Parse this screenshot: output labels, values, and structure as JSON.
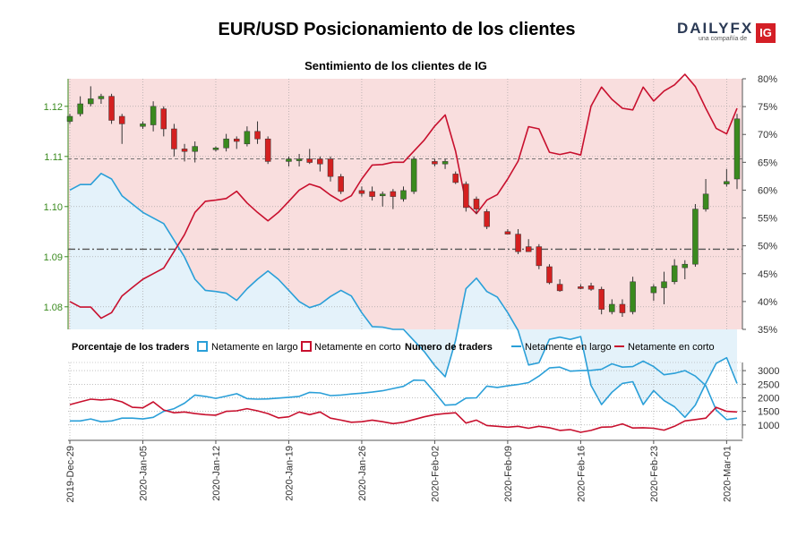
{
  "header": {
    "title": "EUR/USD Posicionamiento de los clientes",
    "logo_text": "DAILYFX",
    "logo_tagline": "una compañía de",
    "logo_ig": "IG"
  },
  "colors": {
    "long": "#2a9fd8",
    "short": "#c8102e",
    "candle_up": "#3a8a1e",
    "candle_down": "#d42020",
    "bg_short_zone": "#f9dede",
    "bg_long_zone": "#e4f2fa"
  },
  "legend": {
    "section_pct": "Porcentaje de los traders",
    "pct_long": "Netamente en largo",
    "pct_short": "Netamente en corto",
    "section_num": "Numero de traders",
    "num_long": "Netamente en largo",
    "num_short": "Netamente en corto"
  },
  "chart_data": [
    {
      "type": "candlestick",
      "title": "Sentimiento de los clientes de IG",
      "price_axis_ticks": [
        "1.08",
        "1.09",
        "1.10",
        "1.11",
        "1.12"
      ],
      "price_ylim": [
        1.0755,
        1.1255
      ],
      "pct_axis_ticks": [
        "35%",
        "40%",
        "45%",
        "50%",
        "55%",
        "60%",
        "65%",
        "70%",
        "75%",
        "80%"
      ],
      "pct_ylim": [
        35,
        80
      ],
      "reference_lines": [
        1.1095,
        1.0915
      ],
      "x_ticks": [
        "2019-Dec-29",
        "2020-Jan-05",
        "2020-Jan-12",
        "2020-Jan-19",
        "2020-Jan-26",
        "2020-Feb-02",
        "2020-Feb-09",
        "2020-Feb-16",
        "2020-Feb-23",
        "2020-Mar-01"
      ],
      "x_range": [
        0,
        64
      ],
      "candles": [
        {
          "x": 0,
          "o": 1.117,
          "h": 1.1185,
          "l": 1.1165,
          "c": 1.118
        },
        {
          "x": 1,
          "o": 1.1185,
          "h": 1.122,
          "l": 1.118,
          "c": 1.1205
        },
        {
          "x": 2,
          "o": 1.1205,
          "h": 1.124,
          "l": 1.12,
          "c": 1.1215
        },
        {
          "x": 3,
          "o": 1.1215,
          "h": 1.1225,
          "l": 1.1205,
          "c": 1.122
        },
        {
          "x": 4,
          "o": 1.122,
          "h": 1.1225,
          "l": 1.1165,
          "c": 1.1172
        },
        {
          "x": 5,
          "o": 1.118,
          "h": 1.1185,
          "l": 1.1125,
          "c": 1.1165
        },
        {
          "x": 7,
          "o": 1.116,
          "h": 1.117,
          "l": 1.1155,
          "c": 1.1165
        },
        {
          "x": 8,
          "o": 1.1163,
          "h": 1.121,
          "l": 1.115,
          "c": 1.12
        },
        {
          "x": 9,
          "o": 1.1195,
          "h": 1.12,
          "l": 1.114,
          "c": 1.1155
        },
        {
          "x": 10,
          "o": 1.1155,
          "h": 1.1165,
          "l": 1.11,
          "c": 1.1115
        },
        {
          "x": 11,
          "o": 1.1115,
          "h": 1.1125,
          "l": 1.109,
          "c": 1.111
        },
        {
          "x": 12,
          "o": 1.111,
          "h": 1.113,
          "l": 1.1088,
          "c": 1.112
        },
        {
          "x": 14,
          "o": 1.1115,
          "h": 1.112,
          "l": 1.111,
          "c": 1.1117
        },
        {
          "x": 15,
          "o": 1.1117,
          "h": 1.1145,
          "l": 1.111,
          "c": 1.1135
        },
        {
          "x": 16,
          "o": 1.1135,
          "h": 1.114,
          "l": 1.1115,
          "c": 1.113
        },
        {
          "x": 17,
          "o": 1.1125,
          "h": 1.116,
          "l": 1.112,
          "c": 1.115
        },
        {
          "x": 18,
          "o": 1.115,
          "h": 1.117,
          "l": 1.1125,
          "c": 1.1135
        },
        {
          "x": 19,
          "o": 1.1135,
          "h": 1.114,
          "l": 1.1085,
          "c": 1.109
        },
        {
          "x": 21,
          "o": 1.109,
          "h": 1.11,
          "l": 1.108,
          "c": 1.1095
        },
        {
          "x": 22,
          "o": 1.1095,
          "h": 1.1105,
          "l": 1.108,
          "c": 1.1095
        },
        {
          "x": 23,
          "o": 1.1095,
          "h": 1.1115,
          "l": 1.1085,
          "c": 1.1088
        },
        {
          "x": 24,
          "o": 1.1095,
          "h": 1.11,
          "l": 1.107,
          "c": 1.1085
        },
        {
          "x": 25,
          "o": 1.1095,
          "h": 1.11,
          "l": 1.105,
          "c": 1.106
        },
        {
          "x": 26,
          "o": 1.106,
          "h": 1.1065,
          "l": 1.1025,
          "c": 1.103
        },
        {
          "x": 28,
          "o": 1.1032,
          "h": 1.104,
          "l": 1.102,
          "c": 1.1026
        },
        {
          "x": 29,
          "o": 1.103,
          "h": 1.104,
          "l": 1.1012,
          "c": 1.102
        },
        {
          "x": 30,
          "o": 1.1025,
          "h": 1.103,
          "l": 1.1,
          "c": 1.1025
        },
        {
          "x": 31,
          "o": 1.103,
          "h": 1.1035,
          "l": 1.0995,
          "c": 1.102
        },
        {
          "x": 32,
          "o": 1.1015,
          "h": 1.104,
          "l": 1.101,
          "c": 1.1032
        },
        {
          "x": 33,
          "o": 1.103,
          "h": 1.11,
          "l": 1.1025,
          "c": 1.1095
        },
        {
          "x": 35,
          "o": 1.109,
          "h": 1.1095,
          "l": 1.108,
          "c": 1.1085
        },
        {
          "x": 36,
          "o": 1.1085,
          "h": 1.1095,
          "l": 1.1075,
          "c": 1.109
        },
        {
          "x": 37,
          "o": 1.1065,
          "h": 1.107,
          "l": 1.1045,
          "c": 1.1048
        },
        {
          "x": 38,
          "o": 1.1045,
          "h": 1.105,
          "l": 1.099,
          "c": 1.0998
        },
        {
          "x": 39,
          "o": 1.1015,
          "h": 1.102,
          "l": 1.0985,
          "c": 1.0995
        },
        {
          "x": 40,
          "o": 1.099,
          "h": 1.0995,
          "l": 1.0955,
          "c": 1.096
        },
        {
          "x": 42,
          "o": 1.095,
          "h": 1.0955,
          "l": 1.0945,
          "c": 1.0945
        },
        {
          "x": 43,
          "o": 1.0945,
          "h": 1.0955,
          "l": 1.0905,
          "c": 1.091
        },
        {
          "x": 44,
          "o": 1.092,
          "h": 1.0935,
          "l": 1.091,
          "c": 1.091
        },
        {
          "x": 45,
          "o": 1.092,
          "h": 1.0925,
          "l": 1.0875,
          "c": 1.0882
        },
        {
          "x": 46,
          "o": 1.088,
          "h": 1.0885,
          "l": 1.0845,
          "c": 1.0848
        },
        {
          "x": 47,
          "o": 1.0845,
          "h": 1.0855,
          "l": 1.083,
          "c": 1.0832
        },
        {
          "x": 49,
          "o": 1.084,
          "h": 1.0845,
          "l": 1.0835,
          "c": 1.0838
        },
        {
          "x": 50,
          "o": 1.0842,
          "h": 1.0848,
          "l": 1.0832,
          "c": 1.0835
        },
        {
          "x": 51,
          "o": 1.0835,
          "h": 1.084,
          "l": 1.0785,
          "c": 1.0795
        },
        {
          "x": 52,
          "o": 1.079,
          "h": 1.0815,
          "l": 1.0785,
          "c": 1.0805
        },
        {
          "x": 53,
          "o": 1.0805,
          "h": 1.0815,
          "l": 1.078,
          "c": 1.0788
        },
        {
          "x": 54,
          "o": 1.079,
          "h": 1.086,
          "l": 1.0785,
          "c": 1.085
        },
        {
          "x": 56,
          "o": 1.0828,
          "h": 1.0845,
          "l": 1.0812,
          "c": 1.084
        },
        {
          "x": 57,
          "o": 1.0838,
          "h": 1.087,
          "l": 1.0805,
          "c": 1.085
        },
        {
          "x": 58,
          "o": 1.085,
          "h": 1.0895,
          "l": 1.0845,
          "c": 1.0882
        },
        {
          "x": 59,
          "o": 1.0878,
          "h": 1.0893,
          "l": 1.0855,
          "c": 1.0885
        },
        {
          "x": 60,
          "o": 1.0885,
          "h": 1.1005,
          "l": 1.088,
          "c": 1.0995
        },
        {
          "x": 61,
          "o": 1.0995,
          "h": 1.1055,
          "l": 1.099,
          "c": 1.1025
        },
        {
          "x": 63,
          "o": 1.1045,
          "h": 1.1075,
          "l": 1.104,
          "c": 1.105
        },
        {
          "x": 64,
          "o": 1.1055,
          "h": 1.1185,
          "l": 1.1035,
          "c": 1.1175
        }
      ],
      "series": [
        {
          "name": "Netamente en largo",
          "x": [
            0,
            1,
            2,
            3,
            4,
            5,
            6,
            7,
            8,
            9,
            10,
            11,
            12,
            13,
            14,
            15,
            16,
            17,
            18,
            19,
            20,
            21,
            22,
            23,
            24,
            25,
            26,
            27,
            28,
            29,
            30,
            31,
            32,
            33,
            34,
            35,
            36,
            37,
            38,
            39,
            40,
            41,
            42,
            43,
            44,
            45,
            46,
            47,
            48,
            49,
            50,
            51,
            52,
            53,
            54,
            55,
            56,
            57,
            58,
            59,
            60,
            61,
            62,
            63,
            64
          ],
          "values": [
            60,
            61,
            61,
            63,
            62,
            59,
            57.5,
            56,
            55,
            54,
            51,
            48,
            44,
            42,
            41.8,
            41.5,
            40.2,
            42.3,
            44,
            45.5,
            44,
            42,
            40,
            38.9,
            39.5,
            40.9,
            42,
            41,
            38,
            35.5,
            35.4,
            35,
            35,
            33,
            31,
            28.5,
            26.5,
            33,
            42.3,
            44.2,
            41.8,
            40.8,
            38,
            34.8,
            28.6,
            29,
            33.2,
            33.6,
            33.2,
            33.7,
            24.9,
            21.5,
            23.7,
            25.3,
            25.6,
            21.5,
            24,
            22.2,
            21.1,
            19.2,
            21.4,
            25.3,
            28.9,
            29.9,
            25.3
          ]
        },
        {
          "name": "Netamente en corto",
          "x": [
            0,
            1,
            2,
            3,
            4,
            5,
            6,
            7,
            8,
            9,
            10,
            11,
            12,
            13,
            14,
            15,
            16,
            17,
            18,
            19,
            20,
            21,
            22,
            23,
            24,
            25,
            26,
            27,
            28,
            29,
            30,
            31,
            32,
            33,
            34,
            35,
            36,
            37,
            38,
            39,
            40,
            41,
            42,
            43,
            44,
            45,
            46,
            47,
            48,
            49,
            50,
            51,
            52,
            53,
            54,
            55,
            56,
            57,
            58,
            59,
            60,
            61,
            62,
            63,
            64
          ],
          "values": [
            40,
            39,
            39,
            37,
            38,
            41,
            42.5,
            44,
            45,
            46,
            49,
            52,
            56,
            58,
            58.2,
            58.5,
            59.8,
            57.7,
            56,
            54.5,
            56,
            58,
            60,
            61.1,
            60.5,
            59.1,
            58,
            59,
            62,
            64.5,
            64.6,
            65,
            65,
            67,
            69,
            71.5,
            73.5,
            67,
            57.7,
            55.8,
            58.2,
            59.2,
            62,
            65.2,
            71.4,
            71,
            66.8,
            66.4,
            66.8,
            66.3,
            75.1,
            78.5,
            76.3,
            74.7,
            74.4,
            78.5,
            76,
            77.8,
            78.9,
            80.8,
            78.6,
            74.7,
            71.1,
            70.1,
            74.7
          ]
        }
      ]
    },
    {
      "type": "line",
      "title": "Numero de traders",
      "y_ticks": [
        "1000",
        "1500",
        "2000",
        "2500",
        "3000"
      ],
      "ylim": [
        500,
        3300
      ],
      "x_range": [
        0,
        64
      ],
      "series": [
        {
          "name": "Netamente en largo",
          "x": [
            0,
            1,
            2,
            3,
            4,
            5,
            6,
            7,
            8,
            9,
            10,
            11,
            12,
            13,
            14,
            15,
            16,
            17,
            18,
            19,
            20,
            21,
            22,
            23,
            24,
            25,
            26,
            27,
            28,
            29,
            30,
            31,
            32,
            33,
            34,
            35,
            36,
            37,
            38,
            39,
            40,
            41,
            42,
            43,
            44,
            45,
            46,
            47,
            48,
            49,
            50,
            51,
            52,
            53,
            54,
            55,
            56,
            57,
            58,
            59,
            60,
            61,
            62,
            63,
            64
          ],
          "values": [
            1150,
            1150,
            1220,
            1120,
            1150,
            1250,
            1250,
            1220,
            1280,
            1500,
            1600,
            1800,
            2100,
            2050,
            1980,
            2060,
            2150,
            1970,
            1950,
            1960,
            1990,
            2020,
            2050,
            2200,
            2180,
            2080,
            2100,
            2140,
            2170,
            2210,
            2260,
            2340,
            2420,
            2650,
            2640,
            2200,
            1730,
            1750,
            1990,
            2000,
            2430,
            2380,
            2440,
            2490,
            2560,
            2800,
            3100,
            3130,
            2980,
            3000,
            3010,
            3050,
            3250,
            3130,
            3150,
            3350,
            3150,
            2850,
            2900,
            3000,
            2800,
            2450,
            1550,
            1200,
            1250
          ]
        },
        {
          "name": "Netamente en corto",
          "x": [
            0,
            1,
            2,
            3,
            4,
            5,
            6,
            7,
            8,
            9,
            10,
            11,
            12,
            13,
            14,
            15,
            16,
            17,
            18,
            19,
            20,
            21,
            22,
            23,
            24,
            25,
            26,
            27,
            28,
            29,
            30,
            31,
            32,
            33,
            34,
            35,
            36,
            37,
            38,
            39,
            40,
            41,
            42,
            43,
            44,
            45,
            46,
            47,
            48,
            49,
            50,
            51,
            52,
            53,
            54,
            55,
            56,
            57,
            58,
            59,
            60,
            61,
            62,
            63,
            64
          ],
          "values": [
            1750,
            1850,
            1950,
            1920,
            1950,
            1850,
            1650,
            1630,
            1850,
            1550,
            1450,
            1480,
            1420,
            1380,
            1360,
            1500,
            1520,
            1600,
            1520,
            1420,
            1260,
            1300,
            1480,
            1380,
            1480,
            1250,
            1180,
            1100,
            1120,
            1180,
            1120,
            1050,
            1100,
            1200,
            1300,
            1380,
            1420,
            1450,
            1070,
            1180,
            980,
            950,
            920,
            950,
            880,
            950,
            900,
            800,
            830,
            730,
            800,
            920,
            930,
            1040,
            890,
            900,
            880,
            810,
            950,
            1150,
            1200,
            1250,
            1650,
            1500,
            1480
          ]
        }
      ]
    }
  ]
}
